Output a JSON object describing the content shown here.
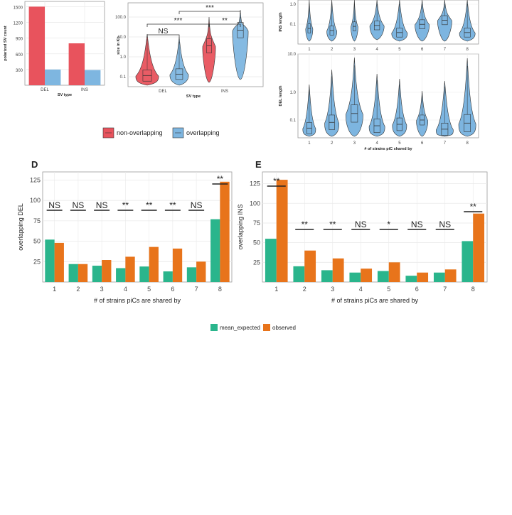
{
  "colors": {
    "red": "#e8535d",
    "blue": "#7eb6e0",
    "blue_violin": "#76b1de",
    "green": "#2ab58c",
    "orange": "#e8741b",
    "grid": "#e9e9e9"
  },
  "chart_data": [
    {
      "id": "A",
      "type": "bar",
      "categories": [
        "DEL",
        "INS"
      ],
      "series": [
        {
          "name": "non-overlapping",
          "color": "#e8535d",
          "values": [
            1500,
            800
          ]
        },
        {
          "name": "overlapping",
          "color": "#7eb6e0",
          "values": [
            300,
            290
          ]
        }
      ],
      "xlabel": "SV type",
      "ylabel": "polarized SV count",
      "yticks": [
        "300",
        "600",
        "900",
        "1200",
        "1500"
      ],
      "ylim": [
        0,
        1600
      ]
    },
    {
      "id": "B",
      "type": "violin",
      "categories": [
        "DEL",
        "INS"
      ],
      "series": [
        {
          "name": "non-overlapping",
          "color": "#e8535d"
        },
        {
          "name": "overlapping",
          "color": "#7eb6e0"
        }
      ],
      "xlabel": "SV type",
      "ylabel": "size in Kb",
      "yscale": "log",
      "yticks": [
        "0.1",
        "1.0",
        "10.0",
        "100.0"
      ],
      "significance": [
        {
          "label": "NS",
          "between": "DEL non-overlapping vs DEL overlapping"
        },
        {
          "label": "***",
          "between": "DEL non-overlapping vs INS non-overlapping"
        },
        {
          "label": "***",
          "between": "DEL overlapping vs INS overlapping"
        },
        {
          "label": "**",
          "between": "INS non-overlapping vs INS overlapping"
        }
      ],
      "legend": {
        "position": "bottom",
        "items": [
          "non-overlapping",
          "overlapping"
        ]
      }
    },
    {
      "id": "C-top",
      "type": "violin",
      "categories": [
        "1",
        "2",
        "3",
        "4",
        "5",
        "6",
        "7",
        "8"
      ],
      "ylabel": "INS length",
      "yscale": "log",
      "yticks": [
        "0.1",
        "1.0"
      ]
    },
    {
      "id": "C-bottom",
      "type": "violin",
      "categories": [
        "1",
        "2",
        "3",
        "4",
        "5",
        "6",
        "7",
        "8"
      ],
      "xlabel": "# of strains piC shared by",
      "ylabel": "DEL length",
      "yscale": "log",
      "yticks": [
        "0.1",
        "1.0",
        "10.0"
      ]
    },
    {
      "id": "D",
      "type": "bar",
      "categories": [
        "1",
        "2",
        "3",
        "4",
        "5",
        "6",
        "7",
        "8"
      ],
      "series": [
        {
          "name": "mean_expected",
          "color": "#2ab58c",
          "values": [
            52,
            22,
            20,
            17,
            19,
            13,
            18,
            77
          ]
        },
        {
          "name": "observed",
          "color": "#e8741b",
          "values": [
            48,
            22,
            27,
            31,
            43,
            41,
            25,
            123
          ]
        }
      ],
      "significance": [
        "NS",
        "NS",
        "NS",
        "**",
        "**",
        "**",
        "NS",
        "**"
      ],
      "xlabel": "# of strains piCs are shared by",
      "ylabel": "overlapping DEL",
      "yticks": [
        "25",
        "50",
        "75",
        "100",
        "125"
      ],
      "ylim": [
        0,
        135
      ]
    },
    {
      "id": "E",
      "type": "bar",
      "categories": [
        "1",
        "2",
        "3",
        "4",
        "5",
        "6",
        "7",
        "8"
      ],
      "series": [
        {
          "name": "mean_expected",
          "color": "#2ab58c",
          "values": [
            55,
            20,
            15,
            12,
            14,
            8,
            12,
            52
          ]
        },
        {
          "name": "observed",
          "color": "#e8741b",
          "values": [
            130,
            40,
            30,
            17,
            25,
            12,
            16,
            87
          ]
        }
      ],
      "significance": [
        "**",
        "**",
        "**",
        "NS",
        "*",
        "NS",
        "NS",
        "**"
      ],
      "xlabel": "# of strains piCs are shared by",
      "ylabel": "overlapping INS",
      "yticks": [
        "25",
        "50",
        "75",
        "100",
        "125"
      ],
      "ylim": [
        0,
        140
      ]
    }
  ],
  "panels": {
    "d_letter": "D",
    "e_letter": "E"
  },
  "legend_ab": {
    "items": [
      {
        "label": "non-overlapping",
        "color": "#e8535d"
      },
      {
        "label": "overlapping",
        "color": "#7eb6e0"
      }
    ]
  },
  "legend_de": {
    "items": [
      {
        "label": "mean_expected",
        "color": "#2ab58c"
      },
      {
        "label": "observed",
        "color": "#e8741b"
      }
    ]
  }
}
